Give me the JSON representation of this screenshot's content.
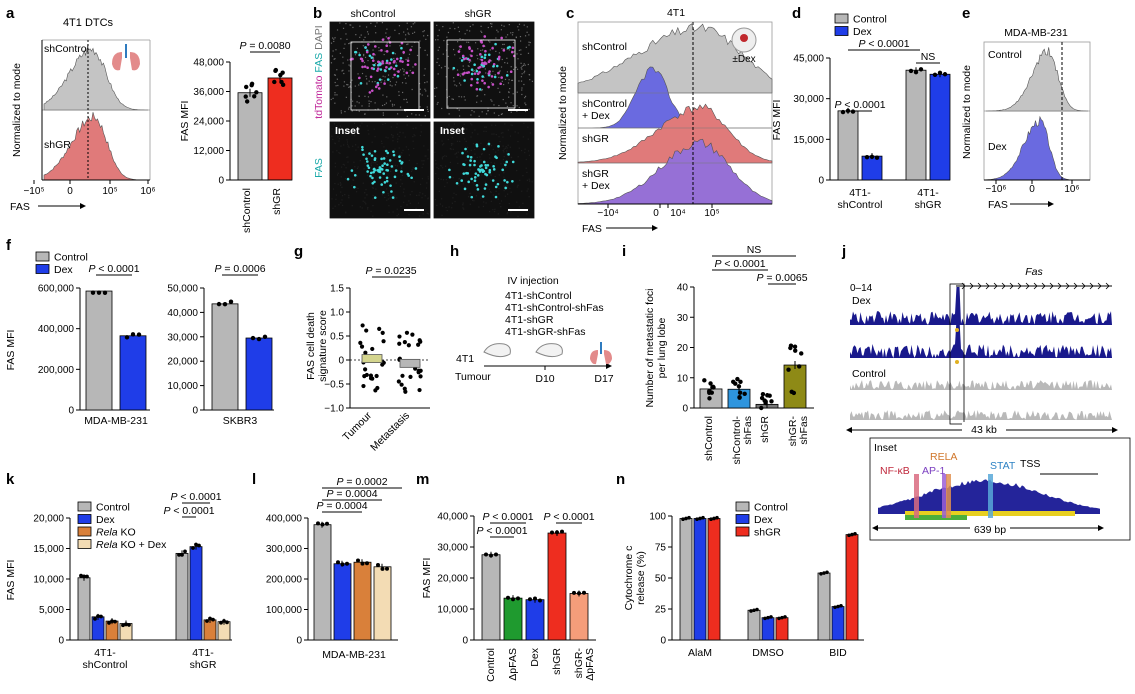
{
  "colors": {
    "grey": "#b7b7b7",
    "blue": "#1f3de8",
    "red": "#ee2d1f",
    "orange": "#d9803a",
    "beige": "#f3dcb4",
    "green": "#1f9a2f",
    "olive": "#8e8a16",
    "lightblue": "#2e95de",
    "salmon": "#f59d7a",
    "histgrey": "#c4c4c4",
    "histred": "#e07a7a",
    "histblue": "#6a6ae0",
    "histpurple": "#9670d6",
    "navy": "#19198c"
  },
  "panel_letters": [
    "a",
    "b",
    "c",
    "d",
    "e",
    "f",
    "g",
    "h",
    "i",
    "j",
    "k",
    "l",
    "m",
    "n"
  ],
  "panels": {
    "a": {
      "title": "4T1 DTCs",
      "rows": [
        "shControl",
        "shGR"
      ],
      "ylabel": "Normalized to mode",
      "xlabel": "FAS",
      "xticks": [
        "−10⁵",
        "0",
        "10⁵",
        "10⁶"
      ]
    },
    "b": {
      "cols": [
        "shControl",
        "shGR"
      ],
      "ylab_tdtomato": "tdTomato",
      "ylab_fas": "FAS",
      "ylab_dapi": "DAPI",
      "inset_label": "Inset",
      "fas_label": "FAS"
    },
    "c": {
      "title": "4T1",
      "rows": [
        "shControl",
        "shControl\n+ Dex",
        "shGR",
        "shGR\n+ Dex"
      ],
      "ylabel": "Normalized to mode",
      "xlabel": "FAS",
      "badge": "±Dex",
      "xticks": [
        "−10⁴",
        "0",
        "10⁴",
        "10⁵"
      ]
    },
    "e": {
      "title": "MDA-MB-231",
      "rows": [
        "Control",
        "Dex"
      ],
      "ylabel": "Normalized to mode",
      "xlabel": "FAS",
      "xticks": [
        "−10⁶",
        "0",
        "10⁶"
      ]
    },
    "h": {
      "title": "IV injection",
      "lines": [
        "4T1-shControl",
        "4T1-shControl-shFas",
        "4T1-shGR",
        "4T1-shGR-shFas"
      ],
      "start": "4T1",
      "start2": "Tumour",
      "d10": "D10",
      "d17": "D17"
    },
    "j": {
      "gene": "Fas",
      "scale": "0–14",
      "tracks": [
        "Dex",
        "Control"
      ],
      "length": "43 kb",
      "inset": "Inset",
      "motifs": [
        "NF-κB",
        "AP-1",
        "RELA",
        "STAT",
        "TSS"
      ],
      "inset_len": "639 bp"
    }
  },
  "chart_data": [
    {
      "id": "a",
      "type": "bar",
      "title": "",
      "ylabel": "FAS MFI",
      "categories": [
        "shControl",
        "shGR"
      ],
      "values": [
        35500,
        41500
      ],
      "ylim": [
        0,
        48000
      ],
      "yticks": [
        "0",
        "12,000",
        "24,000",
        "36,000",
        "48,000"
      ],
      "pvalue": "P = 0.0080"
    },
    {
      "id": "d",
      "type": "bar",
      "ylabel": "FAS MFI",
      "legend": [
        "Control",
        "Dex"
      ],
      "groups": [
        "4T1-\nshControl",
        "4T1-\nshGR"
      ],
      "series": [
        {
          "name": "Control",
          "values": [
            25500,
            40500
          ]
        },
        {
          "name": "Dex",
          "values": [
            8800,
            39000
          ]
        }
      ],
      "ylim": [
        0,
        45000
      ],
      "yticks": [
        "0",
        "15,000",
        "30,000",
        "45,000"
      ],
      "pvalues": [
        "P < 0.0001",
        "P < 0.0001",
        "NS"
      ]
    },
    {
      "id": "f1",
      "type": "bar",
      "ylabel": "FAS MFI",
      "legend": [
        "Control",
        "Dex"
      ],
      "group": "MDA-MB-231",
      "series": [
        {
          "name": "Control",
          "values": [
            585000
          ]
        },
        {
          "name": "Dex",
          "values": [
            365000
          ]
        }
      ],
      "ylim": [
        0,
        600000
      ],
      "yticks": [
        "0",
        "200,000",
        "400,000",
        "600,000"
      ],
      "pvalue": "P < 0.0001"
    },
    {
      "id": "f2",
      "type": "bar",
      "group": "SKBR3",
      "series": [
        {
          "name": "Control",
          "values": [
            43500
          ]
        },
        {
          "name": "Dex",
          "values": [
            29500
          ]
        }
      ],
      "ylim": [
        0,
        50000
      ],
      "yticks": [
        "0",
        "10,000",
        "20,000",
        "30,000",
        "40,000",
        "50,000"
      ],
      "pvalue": "P = 0.0006"
    },
    {
      "id": "g",
      "type": "scatter",
      "ylabel": "FAS cell death\nsignature score",
      "categories": [
        "Tumour",
        "Metastasis"
      ],
      "means": [
        0.03,
        -0.07
      ],
      "ylim": [
        -1,
        1.5
      ],
      "yticks": [
        "−1.0",
        "−0.5",
        "0",
        "0.5",
        "1.0",
        "1.5"
      ],
      "pvalue": "P = 0.0235"
    },
    {
      "id": "i",
      "type": "bar",
      "ylabel": "Number of metastatic foci\nper lung lobe",
      "categories": [
        "shControl",
        "shControl-\nshFas",
        "shGR",
        "shGR-\nshFas"
      ],
      "values": [
        6.3,
        6.2,
        1.2,
        14.2
      ],
      "ylim": [
        0,
        40
      ],
      "yticks": [
        "0",
        "10",
        "20",
        "30",
        "40"
      ],
      "pvalues": [
        "NS",
        "P < 0.0001",
        "P = 0.0065"
      ]
    },
    {
      "id": "k",
      "type": "bar",
      "ylabel": "FAS MFI",
      "legend": [
        "Control",
        "Dex",
        "Rela KO",
        "Rela KO + Dex"
      ],
      "groups": [
        "4T1-\nshControl",
        "4T1-\nshGR"
      ],
      "series": [
        {
          "name": "Control",
          "values": [
            10200,
            14200
          ]
        },
        {
          "name": "Dex",
          "values": [
            3800,
            15300
          ]
        },
        {
          "name": "Rela KO",
          "values": [
            3100,
            3300
          ]
        },
        {
          "name": "Rela KO + Dex",
          "values": [
            2700,
            3000
          ]
        }
      ],
      "ylim": [
        0,
        20000
      ],
      "yticks": [
        "0",
        "5,000",
        "10,000",
        "15,000",
        "20,000"
      ],
      "pvalues": [
        "P < 0.0001",
        "P < 0.0001"
      ]
    },
    {
      "id": "l",
      "type": "bar",
      "group": "MDA-MB-231",
      "values": [
        378000,
        250000,
        255000,
        240000
      ],
      "ylim": [
        0,
        400000
      ],
      "yticks": [
        "0",
        "100,000",
        "200,000",
        "300,000",
        "400,000"
      ],
      "pvalues": [
        "P = 0.0002",
        "P = 0.0004",
        "P = 0.0004"
      ]
    },
    {
      "id": "m",
      "type": "bar",
      "ylabel": "FAS MFI",
      "categories": [
        "Control",
        "ΔpFAS",
        "Dex",
        "shGR",
        "shGR-\nΔpFAS"
      ],
      "values": [
        27500,
        13500,
        13000,
        34500,
        15000
      ],
      "ylim": [
        0,
        40000
      ],
      "yticks": [
        "0",
        "10,000",
        "20,000",
        "30,000",
        "40,000"
      ],
      "pvalues": [
        "P < 0.0001",
        "P < 0.0001",
        "P < 0.0001"
      ]
    },
    {
      "id": "n",
      "type": "bar",
      "ylabel": "Cytochrome c\nrelease (%)",
      "legend": [
        "Control",
        "Dex",
        "shGR"
      ],
      "groups": [
        "AlaM",
        "DMSO",
        "BID"
      ],
      "series": [
        {
          "name": "Control",
          "values": [
            98,
            24,
            54
          ]
        },
        {
          "name": "Dex",
          "values": [
            98,
            18,
            27
          ]
        },
        {
          "name": "shGR",
          "values": [
            98,
            18,
            85
          ]
        }
      ],
      "ylim": [
        0,
        100
      ],
      "yticks": [
        "0",
        "25",
        "50",
        "75",
        "100"
      ]
    }
  ]
}
